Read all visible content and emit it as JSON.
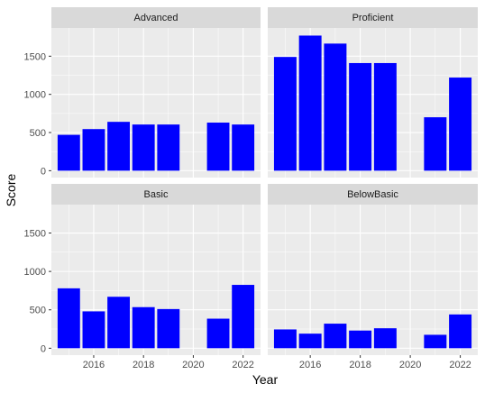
{
  "chart_data": {
    "type": "bar",
    "facet_layout": "2x2 grid",
    "xlabel": "Year",
    "ylabel": "Score",
    "x_ticks": [
      2016,
      2018,
      2020,
      2022
    ],
    "y_ticks": [
      0,
      500,
      1000,
      1500
    ],
    "xlim": [
      2014.3,
      2022.7
    ],
    "ylim": [
      -90,
      1870
    ],
    "grid": true,
    "bar_color": "#0000ff",
    "panel_background": "#ebebeb",
    "strip_background": "#d9d9d9",
    "panels": [
      {
        "name": "Advanced",
        "x": [
          2015,
          2016,
          2017,
          2018,
          2019,
          2021,
          2022
        ],
        "values": [
          470,
          545,
          640,
          605,
          605,
          630,
          605
        ]
      },
      {
        "name": "Proficient",
        "x": [
          2015,
          2016,
          2017,
          2018,
          2019,
          2021,
          2022
        ],
        "values": [
          1490,
          1770,
          1665,
          1410,
          1410,
          700,
          1220
        ]
      },
      {
        "name": "Basic",
        "x": [
          2015,
          2016,
          2017,
          2018,
          2019,
          2021,
          2022
        ],
        "values": [
          780,
          480,
          670,
          535,
          510,
          385,
          825
        ]
      },
      {
        "name": "BelowBasic",
        "x": [
          2015,
          2016,
          2017,
          2018,
          2019,
          2021,
          2022
        ],
        "values": [
          245,
          190,
          320,
          230,
          260,
          175,
          440
        ]
      }
    ]
  }
}
